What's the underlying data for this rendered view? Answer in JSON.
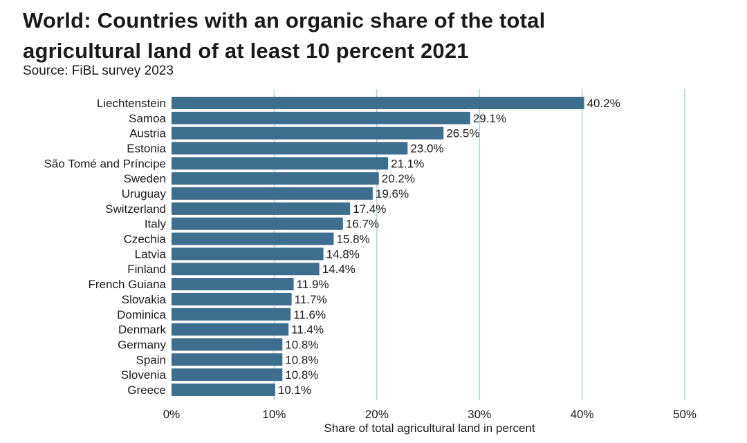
{
  "chart_data": {
    "type": "bar",
    "orientation": "horizontal",
    "title_line1": "World: Countries with an organic share of the total",
    "title_line2": "agricultural land of at least 10 percent  2021",
    "subtitle": "Source: FiBL survey 2023",
    "xlabel": "Share of total agricultural land in percent",
    "ylabel": "",
    "xlim": [
      0,
      50
    ],
    "xticks": [
      0,
      10,
      20,
      30,
      40,
      50
    ],
    "xtick_labels": [
      "0%",
      "10%",
      "20%",
      "30%",
      "40%",
      "50%"
    ],
    "grid": "vertical",
    "categories": [
      "Liechtenstein",
      "Samoa",
      "Austria",
      "Estonia",
      "São Tomé and Príncipe",
      "Sweden",
      "Uruguay",
      "Switzerland",
      "Italy",
      "Czechia",
      "Latvia",
      "Finland",
      "French Guiana",
      "Slovakia",
      "Dominica",
      "Denmark",
      "Germany",
      "Spain",
      "Slovenia",
      "Greece"
    ],
    "values": [
      40.2,
      29.1,
      26.5,
      23.0,
      21.1,
      20.2,
      19.6,
      17.4,
      16.7,
      15.8,
      14.8,
      14.4,
      11.9,
      11.7,
      11.6,
      11.4,
      10.8,
      10.8,
      10.8,
      10.1
    ],
    "value_labels": [
      "40.2%",
      "29.1%",
      "26.5%",
      "23.0%",
      "21.1%",
      "20.2%",
      "19.6%",
      "17.4%",
      "16.7%",
      "15.8%",
      "14.8%",
      "14.4%",
      "11.9%",
      "11.7%",
      "11.6%",
      "11.4%",
      "10.8%",
      "10.8%",
      "10.8%",
      "10.1%"
    ],
    "bar_color": "#3e6e8e",
    "grid_color": "#a8d4e2"
  }
}
